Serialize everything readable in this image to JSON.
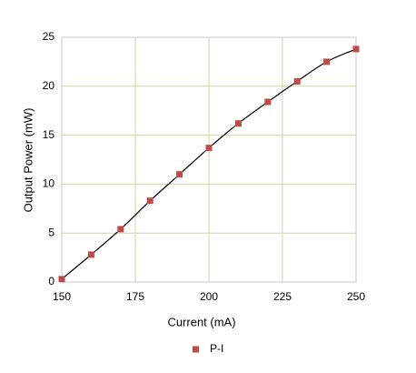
{
  "chart_data": {
    "type": "scatter",
    "x_label": "Current (mA)",
    "y_label": "Output Power (mW)",
    "x": [
      150,
      160,
      170,
      180,
      190,
      200,
      210,
      220,
      230,
      240,
      250
    ],
    "series": [
      {
        "name": "P-I",
        "color": "#be4b48",
        "line_color": "#000000",
        "values": [
          0.3,
          2.8,
          5.4,
          8.3,
          11.0,
          13.7,
          16.2,
          18.4,
          20.5,
          22.5,
          23.8
        ]
      }
    ],
    "xlim": [
      150,
      250
    ],
    "xticks": [
      150,
      175,
      200,
      225,
      250
    ],
    "ylim": [
      0,
      25
    ],
    "yticks": [
      0,
      5,
      10,
      15,
      20,
      25
    ],
    "grid": true,
    "legend": "bottom"
  }
}
